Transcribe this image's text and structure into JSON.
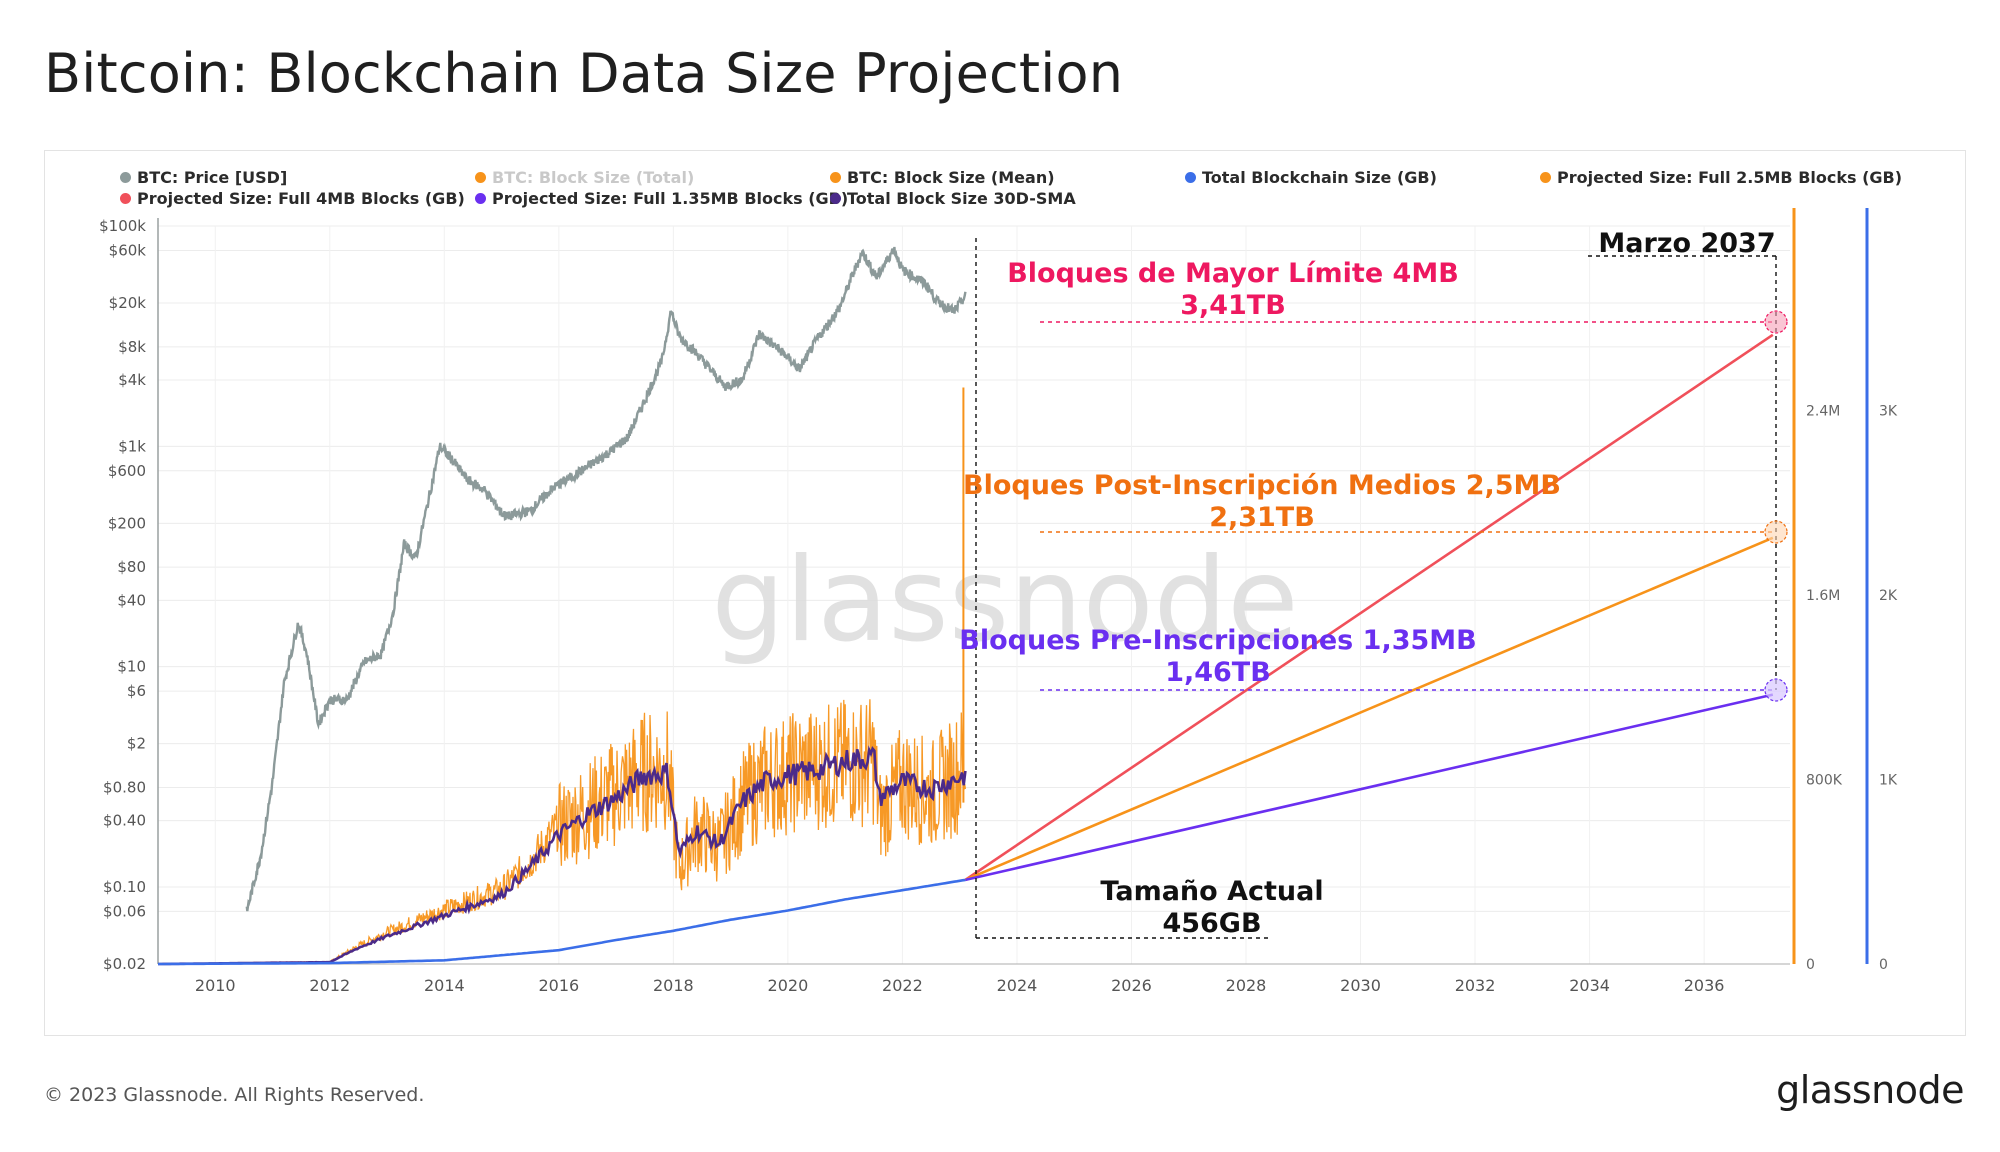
{
  "page": {
    "title": "Bitcoin: Blockchain Data Size Projection",
    "footer_copyright": "© 2023 Glassnode. All Rights Reserved.",
    "footer_logo": "glassnode",
    "watermark": "glassnode"
  },
  "legend": [
    {
      "label": "BTC: Price [USD]",
      "color": "#8c9a9a",
      "muted": false
    },
    {
      "label": "BTC: Block Size (Total)",
      "color": "#f7931a",
      "muted": true
    },
    {
      "label": "BTC: Block Size (Mean)",
      "color": "#f7931a",
      "muted": false
    },
    {
      "label": "Total Blockchain Size (GB)",
      "color": "#3b6ee8",
      "muted": false
    },
    {
      "label": "Projected Size: Full 2.5MB Blocks (GB)",
      "color": "#f7931a",
      "muted": false
    },
    {
      "label": "Projected Size: Full 4MB Blocks (GB)",
      "color": "#f0505a",
      "muted": false
    },
    {
      "label": "Projected Size: Full 1.35MB Blocks (GB)",
      "color": "#6a2ff0",
      "muted": false
    },
    {
      "label": "Total Block Size 30D-SMA",
      "color": "#4b2a8a",
      "muted": false
    }
  ],
  "annotations": {
    "date_label": "Marzo 2037",
    "block_4mb_title": "Bloques de Mayor Límite 4MB",
    "block_4mb_value": "3,41TB",
    "block_25mb_title": "Bloques Post-Inscripción Medios 2,5MB",
    "block_25mb_value": "2,31TB",
    "block_135mb_title": "Bloques Pre-Inscripciones 1,35MB",
    "block_135mb_value": "1,46TB",
    "current_title": "Tamaño Actual",
    "current_value": "456GB"
  },
  "colors": {
    "price": "#8c9a9a",
    "block_total": "#f7931a",
    "block_sma": "#4b2a8a",
    "total_size": "#3b6ee8",
    "proj_4mb": "#f0505a",
    "proj_25mb": "#f7931a",
    "proj_135mb": "#6a2ff0",
    "annot_4mb": "#ee1860",
    "annot_25mb": "#f07010",
    "annot_135mb": "#6a2ff0",
    "axis_orange": "#f7931a",
    "axis_blue": "#3b6ee8"
  },
  "chart_data": {
    "type": "line",
    "x_range": [
      2009,
      2037.5
    ],
    "x_ticks": [
      "2010",
      "2012",
      "2014",
      "2016",
      "2018",
      "2020",
      "2022",
      "2024",
      "2026",
      "2028",
      "2030",
      "2032",
      "2034",
      "2036"
    ],
    "y_left_scale": "log",
    "y_left_ticks": [
      "$100k",
      "$60k",
      "$20k",
      "$8k",
      "$4k",
      "$1k",
      "$600",
      "$200",
      "$80",
      "$40",
      "$10",
      "$6",
      "$2",
      "$0.80",
      "$0.40",
      "$0.10",
      "$0.06",
      "$0.02"
    ],
    "y_left_tick_values": [
      100000,
      60000,
      20000,
      8000,
      4000,
      1000,
      600,
      200,
      80,
      40,
      10,
      6,
      2,
      0.8,
      0.4,
      0.1,
      0.06,
      0.02
    ],
    "y_left_range": [
      0.02,
      100000
    ],
    "y_right1_ticks": [
      "2.4M",
      "1.6M",
      "800K",
      "0"
    ],
    "y_right1_tick_values": [
      2400000,
      1600000,
      800000,
      0
    ],
    "y_right1_range": [
      0,
      3200000
    ],
    "y_right2_ticks": [
      "3K",
      "2K",
      "1K",
      "0"
    ],
    "y_right2_tick_values": [
      3000,
      2000,
      1000,
      0
    ],
    "y_right2_range": [
      0,
      4000
    ],
    "grid": true,
    "series": [
      {
        "name": "BTC: Price [USD]",
        "axis": "left",
        "x": [
          2010.55,
          2010.8,
          2011.0,
          2011.2,
          2011.45,
          2011.6,
          2011.8,
          2012.0,
          2012.3,
          2012.6,
          2012.9,
          2013.1,
          2013.3,
          2013.5,
          2013.8,
          2013.92,
          2014.1,
          2014.4,
          2014.7,
          2015.0,
          2015.1,
          2015.5,
          2015.9,
          2016.4,
          2016.9,
          2017.2,
          2017.5,
          2017.8,
          2017.96,
          2018.1,
          2018.4,
          2018.9,
          2019.2,
          2019.5,
          2019.9,
          2020.2,
          2020.5,
          2020.9,
          2021.1,
          2021.3,
          2021.55,
          2021.85,
          2022.0,
          2022.4,
          2022.6,
          2022.9,
          2023.1
        ],
        "y": [
          0.06,
          0.2,
          0.9,
          7,
          25,
          13,
          3,
          5,
          5,
          11,
          13,
          30,
          130,
          95,
          500,
          1000,
          800,
          500,
          400,
          250,
          230,
          260,
          420,
          600,
          900,
          1200,
          2600,
          6000,
          17000,
          10000,
          7000,
          3500,
          4000,
          10500,
          7200,
          5000,
          9200,
          18000,
          33000,
          58000,
          34000,
          62000,
          40000,
          30000,
          21000,
          16700,
          23000
        ]
      },
      {
        "name": "Total Blockchain Size (GB)",
        "axis": "right2",
        "x": [
          2009.0,
          2012.0,
          2014.0,
          2016.0,
          2017.0,
          2018.0,
          2019.0,
          2020.0,
          2021.0,
          2022.0,
          2023.1
        ],
        "y": [
          0,
          5,
          20,
          75,
          130,
          180,
          240,
          290,
          350,
          400,
          456
        ]
      },
      {
        "name": "BTC: Block Size (Total)",
        "axis": "right1",
        "x": [
          2009.0,
          2012.0,
          2012.5,
          2013.0,
          2014.0,
          2015.0,
          2015.5,
          2016.0,
          2016.5,
          2017.0,
          2017.5,
          2017.9,
          2018.1,
          2018.4,
          2018.8,
          2019.2,
          2019.6,
          2020.0,
          2020.5,
          2021.0,
          2021.5,
          2021.6,
          2022.0,
          2022.5,
          2022.9,
          2023.1
        ],
        "y": [
          0,
          10000,
          80000,
          140000,
          240000,
          330000,
          450000,
          610000,
          690000,
          770000,
          860000,
          870000,
          420000,
          600000,
          530000,
          720000,
          820000,
          850000,
          880000,
          900000,
          910000,
          660000,
          820000,
          760000,
          840000,
          900000
        ]
      },
      {
        "name": "Total Block Size 30D-SMA",
        "axis": "right1",
        "x": [
          2009.0,
          2012.0,
          2012.5,
          2013.0,
          2014.0,
          2015.0,
          2015.5,
          2016.0,
          2016.5,
          2017.0,
          2017.5,
          2017.9,
          2018.1,
          2018.4,
          2018.8,
          2019.2,
          2019.6,
          2020.0,
          2020.5,
          2021.0,
          2021.5,
          2021.6,
          2022.0,
          2022.5,
          2022.9,
          2023.1
        ],
        "y": [
          0,
          8000,
          70000,
          120000,
          210000,
          300000,
          420000,
          560000,
          650000,
          720000,
          820000,
          830000,
          480000,
          580000,
          520000,
          700000,
          790000,
          820000,
          840000,
          880000,
          900000,
          720000,
          790000,
          760000,
          800000,
          820000
        ]
      },
      {
        "name": "Projected Size: Full 4MB Blocks (GB)",
        "axis": "right2",
        "x": [
          2023.1,
          2037.2
        ],
        "y": [
          456,
          3410
        ]
      },
      {
        "name": "Projected Size: Full 2.5MB Blocks (GB)",
        "axis": "right2",
        "x": [
          2023.1,
          2037.2
        ],
        "y": [
          456,
          2310
        ]
      },
      {
        "name": "Projected Size: Full 1.35MB Blocks (GB)",
        "axis": "right2",
        "x": [
          2023.1,
          2037.2
        ],
        "y": [
          456,
          1460
        ]
      }
    ],
    "block_spike": {
      "x": 2023.1,
      "y": 2500000
    }
  }
}
